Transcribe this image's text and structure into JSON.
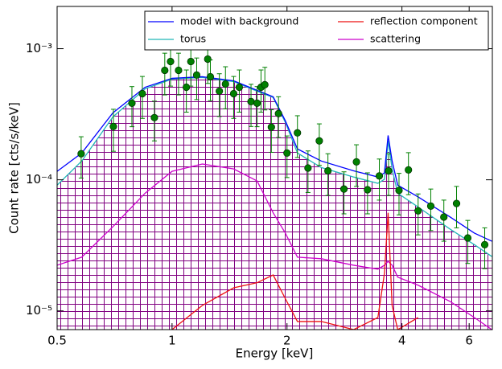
{
  "chart_data": {
    "type": "line",
    "xlabel": "Energy [keV]",
    "ylabel": "Count rate [cts/s/keV]",
    "xscale": "log",
    "yscale": "log",
    "xlim": [
      0.5,
      6.9
    ],
    "ylim": [
      7.2e-06,
      0.0021
    ],
    "xticks": [
      0.5,
      1,
      2,
      4,
      6
    ],
    "yticks": [
      {
        "value": 1e-05,
        "label": "10⁻⁵"
      },
      {
        "value": 0.0001,
        "label": "10⁻⁴"
      },
      {
        "value": 0.001,
        "label": "10⁻³"
      }
    ],
    "legend": "upper right",
    "hatch_color": "#800080",
    "x": [
      0.5,
      0.58,
      0.7,
      0.85,
      1.0,
      1.2,
      1.45,
      1.67,
      1.84,
      1.98,
      2.13,
      2.46,
      2.99,
      3.46,
      3.6,
      3.68,
      3.77,
      3.9,
      4.41,
      5.35,
      6.19,
      6.88
    ],
    "series": [
      {
        "name": "model with background",
        "color": "#0000ff",
        "values": [
          0.000116,
          0.00016,
          0.000324,
          0.000508,
          0.000594,
          0.000611,
          0.000569,
          0.000481,
          0.00043,
          0.000282,
          0.000172,
          0.000139,
          0.000117,
          0.000105,
          0.000113,
          0.000218,
          0.000139,
          9.1e-05,
          7.4e-05,
          5.2e-05,
          3.92e-05,
          3.4e-05
        ]
      },
      {
        "name": "torus",
        "color": "#20b8b8",
        "values": [
          9.1e-05,
          0.000139,
          0.000302,
          0.000494,
          0.000586,
          0.000603,
          0.000561,
          0.000474,
          0.000424,
          0.000274,
          0.00016,
          0.000124,
          0.000105,
          9.4e-05,
          0.000101,
          0.000198,
          0.000121,
          7.9e-05,
          6.2e-05,
          4.2e-05,
          3.2e-05,
          2.6e-05
        ]
      },
      {
        "name": "reflection component",
        "color": "#ee1111",
        "values": [
          null,
          null,
          null,
          null,
          7.2e-06,
          1.1e-05,
          1.5e-05,
          1.64e-05,
          1.88e-05,
          1.24e-05,
          8.3e-06,
          8.3e-06,
          7.2e-06,
          8.9e-06,
          1.94e-05,
          5.6e-05,
          1.1e-05,
          7.2e-06,
          8.9e-06,
          null,
          null,
          null
        ]
      },
      {
        "name": "scattering",
        "color": "#cc00cc",
        "values": [
          2.23e-05,
          2.57e-05,
          4.39e-05,
          7.9e-05,
          0.000116,
          0.000132,
          0.000121,
          9.8e-05,
          5.6e-05,
          3.92e-05,
          2.57e-05,
          2.5e-05,
          2.23e-05,
          2.08e-05,
          2.23e-05,
          2.39e-05,
          2.23e-05,
          1.81e-05,
          1.57e-05,
          1.18e-05,
          8.9e-06,
          7.2e-06
        ]
      }
    ],
    "points": {
      "color": "#008000",
      "x": [
        0.578,
        0.702,
        0.785,
        0.836,
        0.899,
        0.957,
        0.991,
        1.04,
        1.09,
        1.12,
        1.16,
        1.24,
        1.26,
        1.33,
        1.38,
        1.45,
        1.5,
        1.61,
        1.67,
        1.71,
        1.75,
        1.82,
        1.9,
        2.0,
        2.13,
        2.27,
        2.43,
        2.56,
        2.82,
        3.04,
        3.25,
        3.49,
        3.69,
        3.93,
        4.16,
        4.41,
        4.76,
        5.15,
        5.56,
        5.95,
        6.59
      ],
      "values": [
        0.000158,
        0.000255,
        0.000384,
        0.000454,
        0.000298,
        0.000684,
        0.000798,
        0.000684,
        0.000508,
        0.000798,
        0.000629,
        0.000833,
        0.000611,
        0.000474,
        0.000538,
        0.000454,
        0.000508,
        0.000395,
        0.000384,
        0.000508,
        0.000531,
        0.000252,
        0.00032,
        0.00016,
        0.000228,
        0.000123,
        0.000198,
        0.000117,
        8.5e-05,
        0.000137,
        8.4e-05,
        0.000107,
        0.000117,
        8.3e-05,
        0.000119,
        5.8e-05,
        6.3e-05,
        5.2e-05,
        6.6e-05,
        3.6e-05,
        3.2e-05
      ],
      "errors": [
        5.5e-05,
        9e-05,
        0.00013,
        0.00016,
        0.0001,
        0.00024,
        0.00028,
        0.00024,
        0.00018,
        0.00028,
        0.00022,
        0.00029,
        0.00021,
        0.00017,
        0.00019,
        0.00016,
        0.00018,
        0.00014,
        0.00013,
        0.00018,
        0.00019,
        9e-05,
        0.00011,
        5.6e-05,
        8e-05,
        4.3e-05,
        6.9e-05,
        4.1e-05,
        3e-05,
        4.8e-05,
        2.9e-05,
        3.7e-05,
        4.1e-05,
        2.9e-05,
        4.2e-05,
        2e-05,
        2.2e-05,
        1.8e-05,
        2.3e-05,
        1.3e-05,
        1.1e-05
      ]
    }
  }
}
